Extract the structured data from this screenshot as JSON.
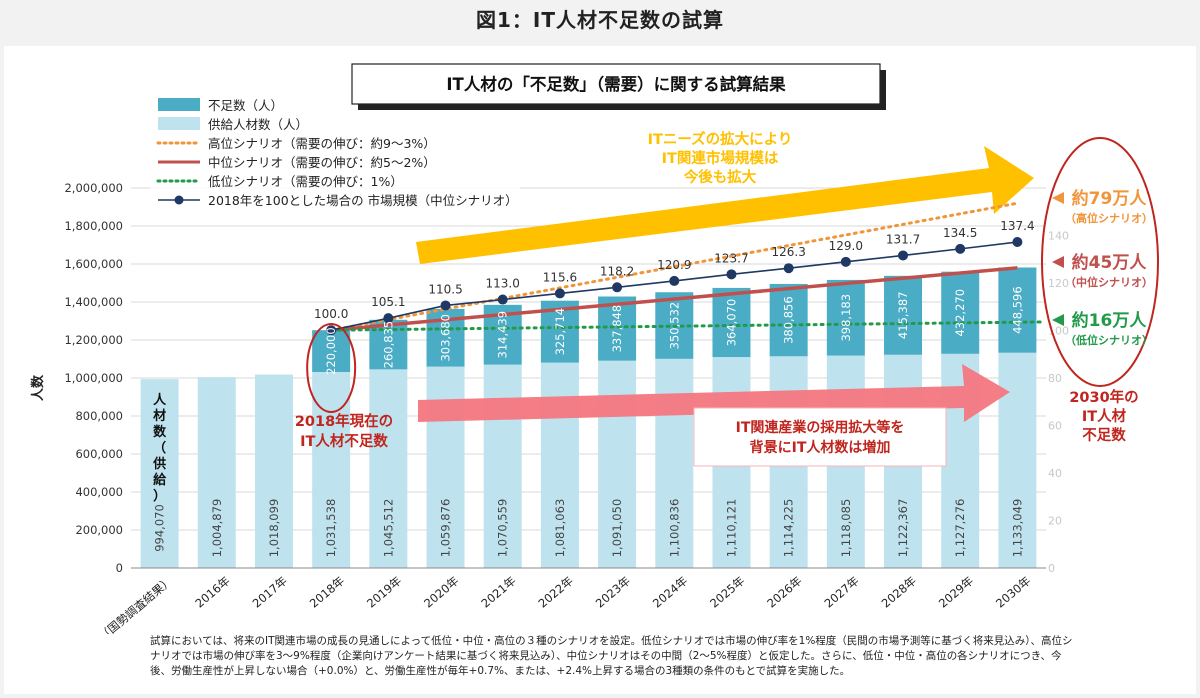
{
  "figure_title": "図1：IT人材不足数の試算",
  "colors": {
    "shortage": "#4bacc6",
    "supply": "#bfe3ee",
    "high": "#f0953a",
    "mid": "#c0504d",
    "low": "#229a4a",
    "market": "#1f3864",
    "orange_arrow": "#ffc000",
    "pink_arrow": "#f4777f",
    "callout_red": "#c0251e"
  },
  "chart_data": {
    "type": "bar",
    "title": "IT人材の「不足数」（需要）に関する試算結果",
    "ylabel": "人数",
    "ylim": [
      0,
      2000000
    ],
    "y_ticks": [
      "0",
      "200,000",
      "400,000",
      "600,000",
      "800,000",
      "1,000,000",
      "1,200,000",
      "1,400,000",
      "1,600,000",
      "1,800,000",
      "2,000,000"
    ],
    "right_axis_ticks": [
      "0",
      "20",
      "40",
      "60",
      "80",
      "100",
      "120",
      "140"
    ],
    "categories": [
      "2015年（国勢調査結果）",
      "2016年",
      "2017年",
      "2018年",
      "2019年",
      "2020年",
      "2021年",
      "2022年",
      "2023年",
      "2024年",
      "2025年",
      "2026年",
      "2027年",
      "2028年",
      "2029年",
      "2030年"
    ],
    "legend": [
      {
        "key": "shortage",
        "label": "不足数（人）",
        "kind": "box"
      },
      {
        "key": "supply",
        "label": "供給人材数（人）",
        "kind": "box"
      },
      {
        "key": "high",
        "label": "高位シナリオ（需要の伸び：約9～3%）",
        "kind": "dotted"
      },
      {
        "key": "mid",
        "label": "中位シナリオ（需要の伸び：約5～2%）",
        "kind": "solid"
      },
      {
        "key": "low",
        "label": "低位シナリオ（需要の伸び：1%）",
        "kind": "dotted"
      },
      {
        "key": "market",
        "label": "2018年を100とした場合の 市場規模（中位シナリオ）",
        "kind": "marker"
      }
    ],
    "series": [
      {
        "name": "供給人材数（人）",
        "values": [
          994070,
          1004879,
          1018099,
          1031538,
          1045512,
          1059876,
          1070559,
          1081063,
          1091050,
          1100836,
          1110121,
          1114225,
          1118085,
          1122367,
          1127276,
          1133049
        ],
        "labels": [
          "994,070",
          "1,004,879",
          "1,018,099",
          "1,031,538",
          "1,045,512",
          "1,059,876",
          "1,070,559",
          "1,081,063",
          "1,091,050",
          "1,100,836",
          "1,110,121",
          "1,114,225",
          "1,118,085",
          "1,122,367",
          "1,127,276",
          "1,133,049"
        ]
      },
      {
        "name": "不足数（人）",
        "values": [
          null,
          null,
          null,
          220000,
          260835,
          303680,
          314439,
          325714,
          337848,
          350532,
          364070,
          380856,
          398183,
          415387,
          432270,
          448596
        ],
        "labels": [
          "",
          "",
          "",
          "220,000",
          "260,835",
          "303,680",
          "314,439",
          "325,714",
          "337,848",
          "350,532",
          "364,070",
          "380,856",
          "398,183",
          "415,387",
          "432,270",
          "448,596"
        ]
      },
      {
        "name": "2018年を100とした場合の 市場規模（中位シナリオ）",
        "values": [
          null,
          null,
          null,
          100.0,
          105.1,
          110.5,
          113.0,
          115.6,
          118.2,
          120.9,
          123.7,
          126.3,
          129.0,
          131.7,
          134.5,
          137.4
        ],
        "labels": [
          "",
          "",
          "",
          "100.0",
          "105.1",
          "110.5",
          "113.0",
          "115.6",
          "118.2",
          "120.9",
          "123.7",
          "126.3",
          "129.0",
          "131.7",
          "134.5",
          "137.4"
        ]
      }
    ],
    "scenario_2030": {
      "high": 1920000,
      "mid": 1580000,
      "low": 1295000,
      "start_2018": 1251538
    },
    "right_callouts": [
      {
        "big": "約79万人",
        "small": "（高位シナリオ）"
      },
      {
        "big": "約45万人",
        "small": "（中位シナリオ）"
      },
      {
        "big": "約16万人",
        "small": "（低位シナリオ）"
      }
    ],
    "annotations": {
      "orange_arrow": [
        "ITニーズの拡大により",
        "IT関連市場規模は",
        "今後も拡大"
      ],
      "pink_arrow": [
        "IT関連産業の採用拡大等を",
        "背景にIT人材数は増加"
      ],
      "shortage_2018": [
        "2018年現在の",
        "IT人材不足数"
      ],
      "shortage_2030": [
        "2030年の",
        "IT人材",
        "不足数"
      ],
      "bar_side_label": "人材数（供給）"
    }
  },
  "footnote": "試算においては、将来のIT関連市場の成長の見通しによって低位・中位・高位の３種のシナリオを設定。低位シナリオでは市場の伸び率を1%程度（民間の市場予測等に基づく将来見込み）、高位シナリオでは市場の伸び率を3～9%程度（企業向けアンケート結果に基づく将来見込み）、中位シナリオはその中間（2～5%程度）と仮定した。さらに、低位・中位・高位の各シナリオにつき、今後、労働生産性が上昇しない場合（+0.0%）と、労働生産性が毎年+0.7%、または、+2.4%上昇する場合の3種類の条件のもとで試算を実施した。"
}
